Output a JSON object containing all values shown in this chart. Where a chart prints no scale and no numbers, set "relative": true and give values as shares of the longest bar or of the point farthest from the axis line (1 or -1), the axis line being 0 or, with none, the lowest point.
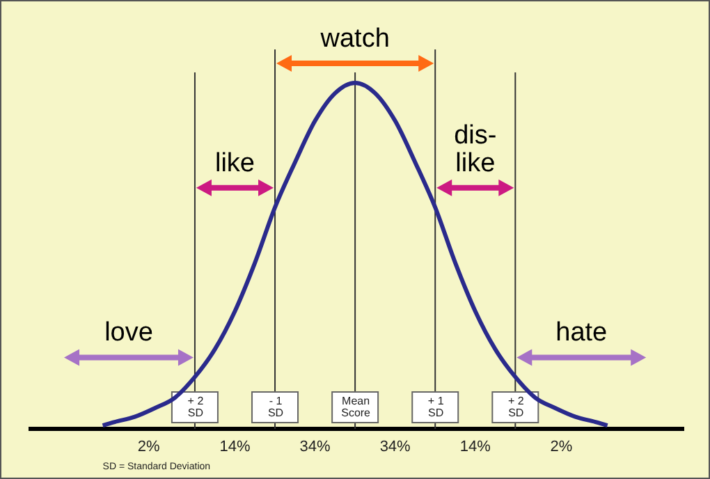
{
  "chart_data": {
    "type": "line",
    "relative": true,
    "x": [
      -3.15,
      -3,
      -2.75,
      -2.5,
      -2.25,
      -2,
      -1.75,
      -1.5,
      -1.25,
      -1,
      -0.75,
      -0.5,
      -0.25,
      0,
      0.25,
      0.5,
      0.75,
      1,
      1.25,
      1.5,
      1.75,
      2,
      2.25,
      2.5,
      2.75,
      3,
      3.15
    ],
    "series": [
      {
        "color": "#2a2a8c",
        "values": [
          0.01,
          0.02,
          0.035,
          0.06,
          0.09,
          0.15,
          0.23,
          0.34,
          0.48,
          0.64,
          0.77,
          0.89,
          0.97,
          1,
          0.97,
          0.89,
          0.77,
          0.64,
          0.48,
          0.34,
          0.23,
          0.15,
          0.09,
          0.06,
          0.035,
          0.02,
          0.01
        ]
      }
    ],
    "xlim": [
      -4.05,
      4.1
    ],
    "xticks": [
      {
        "value": -2,
        "label": "+ 2 SD"
      },
      {
        "value": -1,
        "label": "- 1 SD"
      },
      {
        "value": 0,
        "label": "Mean Score"
      },
      {
        "value": 1,
        "label": "+ 1 SD"
      },
      {
        "value": 2,
        "label": "+ 2 SD"
      }
    ],
    "tick_labels": "x",
    "grid": false,
    "legend": false,
    "marker": "none",
    "ref_lines": [
      {
        "axis": "x",
        "value": -2,
        "color": "#333333"
      },
      {
        "axis": "x",
        "value": -1,
        "color": "#333333"
      },
      {
        "axis": "x",
        "value": 0,
        "color": "#333333"
      },
      {
        "axis": "x",
        "value": 1,
        "color": "#333333"
      },
      {
        "axis": "x",
        "value": 2,
        "color": "#333333"
      }
    ],
    "annotations": [
      "love",
      "like",
      "watch",
      "dis-\nlike",
      "hate",
      "2%",
      "14%",
      "34%",
      "34%",
      "14%",
      "2%",
      "SD = Standard Deviation"
    ]
  }
}
